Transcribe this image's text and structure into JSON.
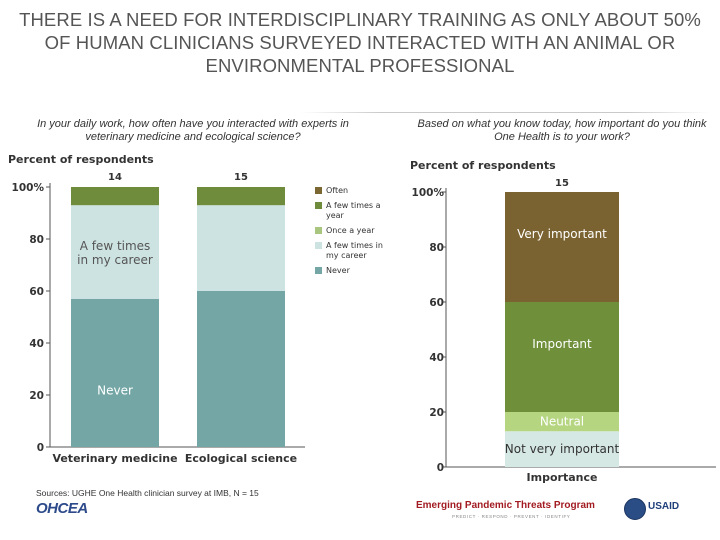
{
  "title": "THERE IS A NEED FOR INTERDISCIPLINARY TRAINING AS ONLY ABOUT 50% OF HUMAN CLINICIANS SURVEYED INTERACTED WITH AN ANIMAL OR ENVIRONMENTAL PROFESSIONAL",
  "left_question": "In your daily work, how often have you interacted with experts in veterinary medicine and ecological science?",
  "right_question": "Based on what you know today, how important do you think One Health is to your work?",
  "source": "Sources: UGHE One Health clinician survey at IMB, N = 15",
  "logos": {
    "left": "OHCEA",
    "center": "Emerging Pandemic Threats Program",
    "center_sub": "PREDICT · RESPOND · PREVENT · IDENTIFY",
    "right": "USAID"
  },
  "colors": {
    "often": "#7b6731",
    "few_times_year": "#6f8b3c",
    "once_year": "#a9c67f",
    "few_times_career": "#cde3e1",
    "never": "#74a6a6",
    "very_important": "#7a6330",
    "important": "#6f8f3a",
    "neutral": "#b5d581",
    "not_very_important": "#d6e8e4"
  },
  "chart_data": [
    {
      "type": "bar",
      "stacked": true,
      "ylabel": "Percent of respondents",
      "ylim": [
        0,
        100
      ],
      "yticks": [
        "0",
        "20",
        "40",
        "60",
        "80",
        "100%"
      ],
      "categories": [
        "Veterinary medicine",
        "Ecological science"
      ],
      "n_labels": [
        "14",
        "15"
      ],
      "series": [
        {
          "name": "Never",
          "values": [
            57,
            60
          ],
          "color_key": "never"
        },
        {
          "name": "A few times in my career",
          "values": [
            36,
            33
          ],
          "color_key": "few_times_career"
        },
        {
          "name": "Once a year",
          "values": [
            0,
            0
          ],
          "color_key": "once_year"
        },
        {
          "name": "A few times a year",
          "values": [
            7,
            7
          ],
          "color_key": "few_times_year"
        },
        {
          "name": "Often",
          "values": [
            0,
            0
          ],
          "color_key": "often"
        }
      ],
      "segment_labels": [
        {
          "text": "Never",
          "category": 0,
          "series": 0
        },
        {
          "text": "A few times in my career",
          "category": 0,
          "series": 1
        }
      ],
      "legend": [
        "Often",
        "A few times a year",
        "Once a year",
        "A few times in my career",
        "Never"
      ],
      "legend_placement": "right"
    },
    {
      "type": "bar",
      "stacked": true,
      "ylabel": "Percent of respondents",
      "xlabel": "Importance",
      "ylim": [
        0,
        100
      ],
      "yticks": [
        "0",
        "20",
        "40",
        "60",
        "80",
        "100%"
      ],
      "n_label": "15",
      "segments": [
        {
          "name": "Not very important",
          "value": 13,
          "color_key": "not_very_important"
        },
        {
          "name": "Neutral",
          "value": 7,
          "color_key": "neutral"
        },
        {
          "name": "Important",
          "value": 40,
          "color_key": "important"
        },
        {
          "name": "Very important",
          "value": 40,
          "color_key": "very_important"
        }
      ]
    }
  ]
}
